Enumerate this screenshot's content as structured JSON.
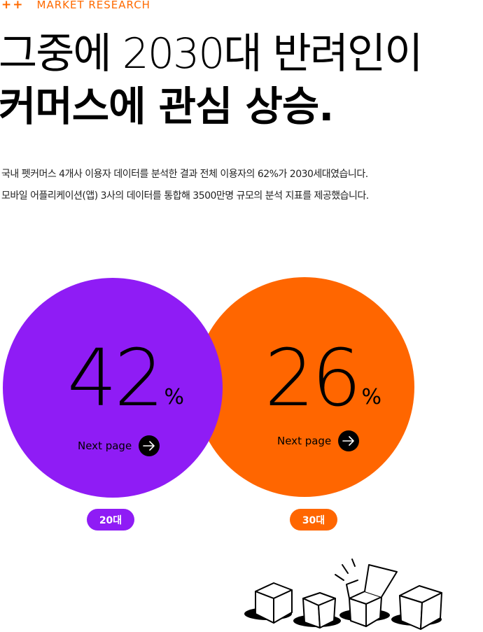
{
  "eyebrow": {
    "plus": "++",
    "label": "MARKET RESEARCH",
    "color": "#ff6a00"
  },
  "headline": {
    "line1": "그중에 2030대 반려인이",
    "line2": "커머스에 관심 상승."
  },
  "description": {
    "line1": "국내 펫커머스 4개사 이용자 데이터를  분석한 결과 전체 이용자의 62%가 2030세대였습니다.",
    "line2": "모바일 어플리케이션(앱) 3사의 데이터를 통합해 3500만명 규모의 분석 지표를 제공했습니다."
  },
  "stats": [
    {
      "value": "42",
      "unit": "%",
      "link": "Next page",
      "badge": "20대",
      "color": "#8f1cf5"
    },
    {
      "value": "26",
      "unit": "%",
      "link": "Next page",
      "badge": "30대",
      "color": "#ff6600"
    }
  ],
  "icons": {
    "next": "arrow-right-icon",
    "illustration": "boxes-illustration"
  }
}
